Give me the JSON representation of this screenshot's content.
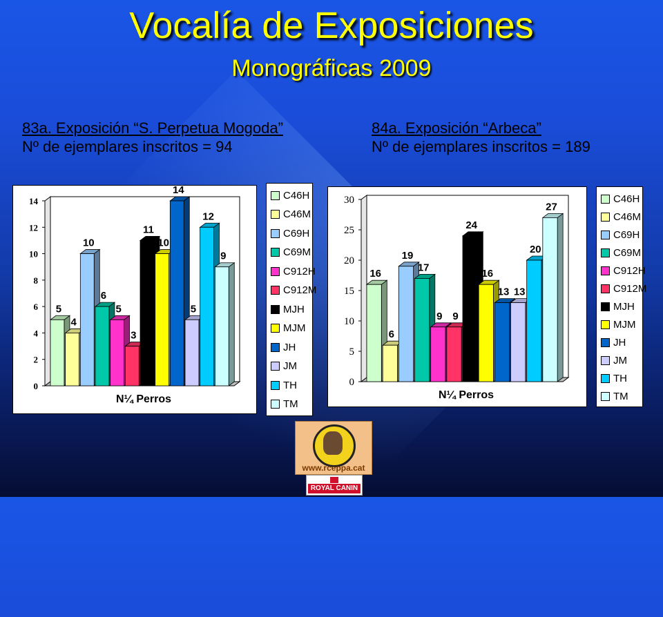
{
  "title": "Vocalía de Exposiciones",
  "subtitle": "Monográficas 2009",
  "left": {
    "heading": "83a. Exposición “S. Perpetua Mogoda”",
    "count_text": "Nº de ejemplares inscritos = 94"
  },
  "right": {
    "heading": "84a. Exposición “Arbeca”",
    "count_text": "Nº de ejemplares inscritos = 189"
  },
  "logos": {
    "club_url": "www.rceppa.cat",
    "sponsor": "ROYAL CANIN"
  },
  "colors": {
    "C46H": "#ccffcc",
    "C46M": "#ffff99",
    "C69H": "#99ccff",
    "C69M": "#00c8a8",
    "C912H": "#ff33cc",
    "C912M": "#ff3366",
    "MJH": "#000000",
    "MJM": "#ffff00",
    "JH": "#0066cc",
    "JM": "#ccccff",
    "TH": "#00ccff",
    "TM": "#ccffff"
  },
  "chart_data": [
    {
      "type": "bar",
      "xlabel": "N¼ Perros",
      "ylim": [
        0,
        14
      ],
      "yticks": [
        0,
        2,
        4,
        6,
        8,
        10,
        12,
        14
      ],
      "categories": [
        "C46H",
        "C46M",
        "C69H",
        "C69M",
        "C912H",
        "C912M",
        "MJH",
        "MJM",
        "JH",
        "JM",
        "TH",
        "TM"
      ],
      "values": [
        5,
        4,
        10,
        6,
        5,
        3,
        11,
        10,
        14,
        5,
        12,
        9
      ],
      "legend": "right"
    },
    {
      "type": "bar",
      "xlabel": "N¼ Perros",
      "ylim": [
        0,
        30
      ],
      "yticks": [
        0,
        5,
        10,
        15,
        20,
        25,
        30
      ],
      "categories": [
        "C46H",
        "C46M",
        "C69H",
        "C69M",
        "C912H",
        "C912M",
        "MJH",
        "MJM",
        "JH",
        "JM",
        "TH",
        "TM"
      ],
      "values": [
        16,
        6,
        19,
        17,
        9,
        9,
        24,
        16,
        13,
        13,
        20,
        27
      ],
      "legend": "right"
    }
  ]
}
